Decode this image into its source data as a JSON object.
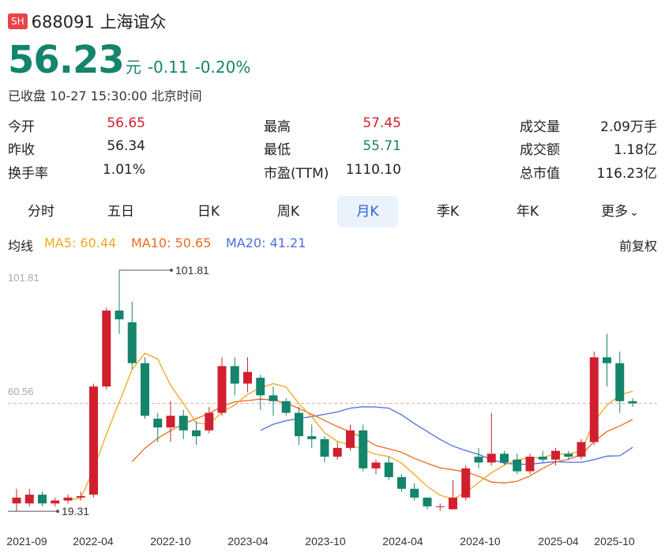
{
  "header": {
    "badge": "SH",
    "code_name": "688091 上海谊众"
  },
  "quote": {
    "price": "56.23",
    "unit": "元",
    "change": "-0.11",
    "change_pct": "-0.20%",
    "status": "已收盘 10-27 15:30:00 北京时间"
  },
  "stats": [
    [
      {
        "label": "今开",
        "value": "56.65",
        "tone": "red"
      },
      {
        "label": "最高",
        "value": "57.45",
        "tone": "red"
      },
      {
        "label": "成交量",
        "value": "2.09万手",
        "tone": "dark"
      }
    ],
    [
      {
        "label": "昨收",
        "value": "56.34",
        "tone": "dark"
      },
      {
        "label": "最低",
        "value": "55.71",
        "tone": "green"
      },
      {
        "label": "成交额",
        "value": "1.18亿",
        "tone": "dark"
      }
    ],
    [
      {
        "label": "换手率",
        "value": "1.01%",
        "tone": "dark"
      },
      {
        "label": "市盈(TTM)",
        "value": "1110.10",
        "tone": "dark"
      },
      {
        "label": "总市值",
        "value": "116.23亿",
        "tone": "dark"
      }
    ]
  ],
  "tabs": [
    "分时",
    "五日",
    "日K",
    "周K",
    "月K",
    "季K",
    "年K",
    "更多"
  ],
  "active_tab": 4,
  "ma_legend": {
    "title": "均线",
    "ma5": "MA5: 60.44",
    "ma10": "MA10: 50.65",
    "ma20": "MA20: 41.21",
    "adjust": "前复权"
  },
  "colors": {
    "up": "#d0202f",
    "down": "#14846b",
    "ma5": "#f4a71c",
    "ma10": "#ef6a1d",
    "ma20": "#4b6fe0",
    "active_tab_bg": "#eaf2fc",
    "active_tab_text": "#2d62d6"
  },
  "chart_data": {
    "type": "candlestick",
    "y_top_label": "101.81",
    "y_mid_label": "60.56",
    "ylim": [
      18.0,
      101.81
    ],
    "current_price": 56.23,
    "max_label": "101.81",
    "min_label": "19.31",
    "x_tick_labels": [
      "2021-09",
      "2022-04",
      "2022-10",
      "2023-04",
      "2023-10",
      "2024-04",
      "2024-10",
      "2025-04",
      "2025-10"
    ],
    "x_tick_index": [
      0,
      7,
      13,
      19,
      25,
      31,
      37,
      43,
      47
    ],
    "candles": [
      {
        "o": 22,
        "c": 24,
        "h": 27,
        "l": 19.31
      },
      {
        "o": 22,
        "c": 25,
        "h": 27,
        "l": 21
      },
      {
        "o": 25,
        "c": 22,
        "h": 26,
        "l": 21
      },
      {
        "o": 22,
        "c": 23,
        "h": 24,
        "l": 21
      },
      {
        "o": 23,
        "c": 24,
        "h": 25,
        "l": 22
      },
      {
        "o": 24,
        "c": 24.5,
        "h": 26,
        "l": 23
      },
      {
        "o": 25,
        "c": 62,
        "h": 63,
        "l": 24
      },
      {
        "o": 62,
        "c": 88,
        "h": 89,
        "l": 61
      },
      {
        "o": 88,
        "c": 85,
        "h": 101.81,
        "l": 80
      },
      {
        "o": 84,
        "c": 70,
        "h": 91,
        "l": 68
      },
      {
        "o": 70,
        "c": 52,
        "h": 72,
        "l": 51
      },
      {
        "o": 51,
        "c": 48,
        "h": 53,
        "l": 43
      },
      {
        "o": 48,
        "c": 52,
        "h": 57,
        "l": 43
      },
      {
        "o": 52,
        "c": 47,
        "h": 54,
        "l": 44
      },
      {
        "o": 47,
        "c": 45,
        "h": 50,
        "l": 42
      },
      {
        "o": 47,
        "c": 53,
        "h": 55,
        "l": 46
      },
      {
        "o": 53,
        "c": 69,
        "h": 72,
        "l": 52
      },
      {
        "o": 69,
        "c": 63,
        "h": 72,
        "l": 59
      },
      {
        "o": 63,
        "c": 67,
        "h": 72,
        "l": 60
      },
      {
        "o": 65,
        "c": 59,
        "h": 66,
        "l": 54
      },
      {
        "o": 59,
        "c": 57,
        "h": 62,
        "l": 52
      },
      {
        "o": 57,
        "c": 53,
        "h": 58,
        "l": 52
      },
      {
        "o": 53,
        "c": 45,
        "h": 55,
        "l": 42
      },
      {
        "o": 45,
        "c": 44,
        "h": 49,
        "l": 41
      },
      {
        "o": 44,
        "c": 38,
        "h": 45,
        "l": 36
      },
      {
        "o": 38,
        "c": 41,
        "h": 43,
        "l": 37
      },
      {
        "o": 41,
        "c": 47,
        "h": 49,
        "l": 40
      },
      {
        "o": 47,
        "c": 34,
        "h": 49,
        "l": 33
      },
      {
        "o": 34,
        "c": 36,
        "h": 37,
        "l": 32
      },
      {
        "o": 36,
        "c": 31,
        "h": 38,
        "l": 30
      },
      {
        "o": 31,
        "c": 27,
        "h": 32,
        "l": 26
      },
      {
        "o": 27,
        "c": 24,
        "h": 29,
        "l": 23
      },
      {
        "o": 24,
        "c": 21,
        "h": 24,
        "l": 20
      },
      {
        "o": 21,
        "c": 21,
        "h": 22,
        "l": 19.5
      },
      {
        "o": 20,
        "c": 24,
        "h": 30,
        "l": 20
      },
      {
        "o": 24,
        "c": 34,
        "h": 35,
        "l": 23
      },
      {
        "o": 38,
        "c": 36,
        "h": 41,
        "l": 34
      },
      {
        "o": 36,
        "c": 39,
        "h": 53,
        "l": 35
      },
      {
        "o": 39,
        "c": 36,
        "h": 40,
        "l": 35
      },
      {
        "o": 37,
        "c": 33,
        "h": 39,
        "l": 32
      },
      {
        "o": 33,
        "c": 38,
        "h": 39,
        "l": 32
      },
      {
        "o": 38,
        "c": 37,
        "h": 40,
        "l": 36
      },
      {
        "o": 37,
        "c": 40,
        "h": 41,
        "l": 35
      },
      {
        "o": 39,
        "c": 38,
        "h": 40,
        "l": 37
      },
      {
        "o": 38,
        "c": 43,
        "h": 44,
        "l": 37
      },
      {
        "o": 43,
        "c": 72,
        "h": 74,
        "l": 42
      },
      {
        "o": 72,
        "c": 70,
        "h": 80,
        "l": 62
      },
      {
        "o": 70,
        "c": 57,
        "h": 74,
        "l": 53
      },
      {
        "o": 57,
        "c": 56.23,
        "h": 58,
        "l": 55
      }
    ],
    "series": [
      {
        "name": "MA5",
        "values": [
          null,
          null,
          null,
          null,
          23.3,
          23.7,
          33.7,
          45.7,
          56.7,
          67.8,
          73.4,
          71.4,
          62.4,
          56.2,
          49.6,
          49.1,
          53.2,
          55.7,
          59.3,
          61.6,
          63.0,
          61.8,
          56.2,
          51.6,
          46.2,
          43.2,
          42.0,
          40.4,
          38.8,
          38.1,
          35.8,
          31.9,
          27.8,
          24.8,
          23.5,
          25.8,
          29.1,
          32.5,
          35.1,
          36.9,
          37.6,
          37.7,
          39.0,
          38.8,
          40.1,
          50.1,
          55.6,
          59.1,
          60.4
        ]
      },
      {
        "name": "MA10",
        "values": [
          null,
          null,
          null,
          null,
          null,
          null,
          null,
          null,
          null,
          36.3,
          40.9,
          44.3,
          46.9,
          49.2,
          51.0,
          52.8,
          55.2,
          56.8,
          57.2,
          57.7,
          57.4,
          56.3,
          54.5,
          52.5,
          50.4,
          48.3,
          46.5,
          44.4,
          41.8,
          40.7,
          39.5,
          37.4,
          35.7,
          34.2,
          33.5,
          32.8,
          31.3,
          29.3,
          29.0,
          29.6,
          31.4,
          34.0,
          36.2,
          37.1,
          38.6,
          43.2,
          46.6,
          48.5,
          50.7
        ]
      },
      {
        "name": "MA20",
        "values": [
          null,
          null,
          null,
          null,
          null,
          null,
          null,
          null,
          null,
          null,
          null,
          null,
          null,
          null,
          null,
          null,
          null,
          null,
          null,
          47.0,
          49.1,
          50.3,
          51.1,
          51.7,
          52.5,
          53.3,
          54.6,
          55.1,
          55.0,
          54.6,
          52.3,
          49.3,
          46.6,
          43.9,
          41.6,
          40.1,
          38.8,
          37.0,
          35.8,
          35.4,
          35.4,
          35.9,
          36.3,
          36.1,
          36.1,
          37.0,
          38.2,
          38.3,
          41.2
        ]
      }
    ]
  }
}
